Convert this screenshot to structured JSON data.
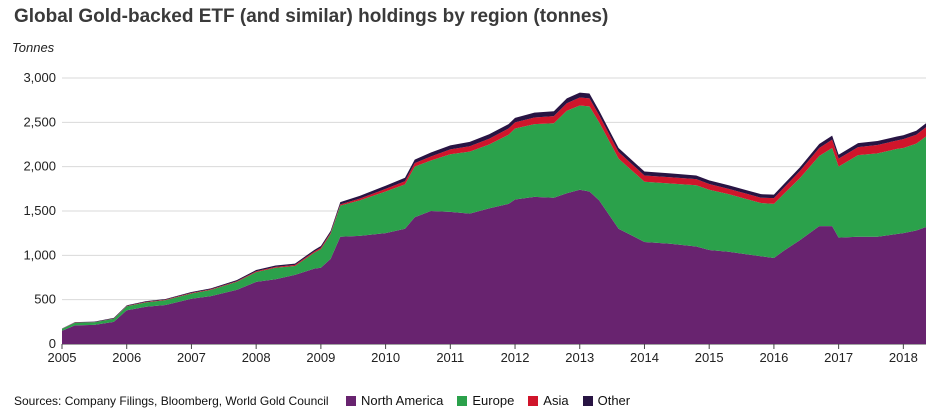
{
  "chart_data": {
    "type": "area",
    "stacked": true,
    "title": "Global Gold-backed ETF (and similar) holdings by region (tonnes)",
    "ylabel": "Tonnes",
    "ylim": [
      0,
      3000
    ],
    "yticks": [
      0,
      500,
      1000,
      1500,
      2000,
      2500,
      3000
    ],
    "ytick_labels": [
      "0",
      "500",
      "1,000",
      "1,500",
      "2,000",
      "2,500",
      "3,000"
    ],
    "xlim": [
      2005.0,
      2018.35
    ],
    "xticks": [
      2005,
      2006,
      2007,
      2008,
      2009,
      2010,
      2011,
      2012,
      2013,
      2014,
      2015,
      2016,
      2017,
      2018
    ],
    "xtick_labels": [
      "2005",
      "2006",
      "2007",
      "2008",
      "2009",
      "2010",
      "2011",
      "2012",
      "2013",
      "2014",
      "2015",
      "2016",
      "2017",
      "2018"
    ],
    "grid": true,
    "x": [
      2005.0,
      2005.2,
      2005.5,
      2005.8,
      2006.0,
      2006.3,
      2006.6,
      2007.0,
      2007.3,
      2007.7,
      2008.0,
      2008.3,
      2008.6,
      2008.9,
      2009.0,
      2009.15,
      2009.3,
      2009.6,
      2010.0,
      2010.3,
      2010.45,
      2010.7,
      2011.0,
      2011.3,
      2011.6,
      2011.9,
      2012.0,
      2012.3,
      2012.6,
      2012.8,
      2013.0,
      2013.15,
      2013.3,
      2013.6,
      2014.0,
      2014.4,
      2014.8,
      2015.0,
      2015.3,
      2015.6,
      2015.8,
      2016.0,
      2016.15,
      2016.4,
      2016.7,
      2016.9,
      2017.0,
      2017.3,
      2017.6,
      2017.9,
      2018.0,
      2018.2,
      2018.35
    ],
    "series": [
      {
        "name": "North America",
        "color": "#68236f",
        "values": [
          150,
          210,
          215,
          250,
          380,
          420,
          440,
          510,
          540,
          610,
          700,
          730,
          780,
          850,
          860,
          960,
          1210,
          1220,
          1250,
          1300,
          1430,
          1500,
          1490,
          1470,
          1530,
          1580,
          1630,
          1660,
          1650,
          1700,
          1740,
          1720,
          1620,
          1300,
          1150,
          1130,
          1100,
          1060,
          1040,
          1010,
          990,
          970,
          1050,
          1170,
          1330,
          1330,
          1200,
          1210,
          1210,
          1240,
          1250,
          1280,
          1320
        ]
      },
      {
        "name": "Europe",
        "color": "#2ba14b",
        "values": [
          20,
          30,
          30,
          35,
          45,
          50,
          55,
          60,
          70,
          90,
          110,
          130,
          100,
          180,
          210,
          280,
          350,
          400,
          470,
          500,
          570,
          570,
          650,
          700,
          720,
          780,
          800,
          820,
          840,
          930,
          950,
          960,
          880,
          790,
          680,
          680,
          690,
          680,
          650,
          620,
          600,
          610,
          640,
          700,
          790,
          880,
          800,
          920,
          940,
          960,
          960,
          980,
          1020
        ]
      },
      {
        "name": "Asia",
        "color": "#d0152b",
        "values": [
          2,
          2,
          2,
          3,
          4,
          5,
          5,
          6,
          7,
          8,
          10,
          10,
          12,
          14,
          15,
          15,
          15,
          20,
          30,
          35,
          40,
          45,
          55,
          60,
          65,
          70,
          70,
          75,
          80,
          85,
          90,
          90,
          80,
          75,
          70,
          70,
          70,
          65,
          60,
          60,
          60,
          65,
          70,
          80,
          90,
          95,
          90,
          90,
          95,
          95,
          100,
          100,
          105
        ]
      },
      {
        "name": "Other",
        "color": "#281443",
        "values": [
          3,
          5,
          5,
          6,
          7,
          8,
          8,
          10,
          10,
          12,
          14,
          15,
          15,
          18,
          20,
          20,
          25,
          30,
          35,
          40,
          40,
          45,
          45,
          50,
          50,
          50,
          50,
          55,
          55,
          55,
          55,
          55,
          50,
          45,
          45,
          45,
          40,
          40,
          40,
          40,
          40,
          40,
          40,
          40,
          45,
          45,
          45,
          45,
          45,
          45,
          45,
          45,
          45
        ]
      }
    ]
  },
  "footer": {
    "sources": "Sources: Company Filings, Bloomberg, World Gold Council"
  }
}
